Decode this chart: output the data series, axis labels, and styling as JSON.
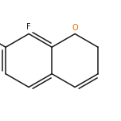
{
  "background_color": "#ffffff",
  "bond_color": "#1a1a1a",
  "O_color": "#e07000",
  "F_color": "#1a1a1a",
  "lw": 1.1,
  "figsize": [
    1.52,
    1.52
  ],
  "dpi": 100,
  "sc": 0.185,
  "ox": 0.44,
  "oy": 0.5
}
